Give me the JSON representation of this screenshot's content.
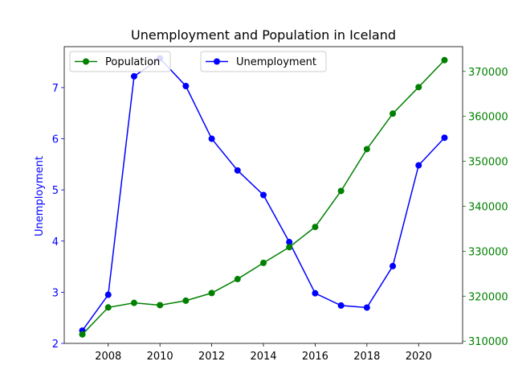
{
  "chart_data": {
    "type": "line",
    "title": "Unemployment and Population in Iceland",
    "x": [
      2007,
      2008,
      2009,
      2010,
      2011,
      2012,
      2013,
      2014,
      2015,
      2016,
      2017,
      2018,
      2019,
      2020,
      2021
    ],
    "x_ticks": [
      2008,
      2010,
      2012,
      2014,
      2016,
      2018,
      2020
    ],
    "xlim": [
      2006.3,
      2021.7
    ],
    "left_axis": {
      "label": "Unemployment",
      "ylim": [
        2.0,
        7.8
      ],
      "ticks": [
        2,
        3,
        4,
        5,
        6,
        7
      ],
      "color": "#0000ff"
    },
    "right_axis": {
      "ylim": [
        309500,
        375500
      ],
      "ticks": [
        310000,
        320000,
        330000,
        340000,
        350000,
        360000,
        370000
      ],
      "color": "#008000"
    },
    "series": [
      {
        "name": "Unemployment",
        "axis": "left",
        "color": "#0000ff",
        "values": [
          2.25,
          2.95,
          7.22,
          7.57,
          7.03,
          6.0,
          5.38,
          4.9,
          3.98,
          2.98,
          2.74,
          2.7,
          3.51,
          5.48,
          6.02
        ]
      },
      {
        "name": "Population",
        "axis": "right",
        "color": "#008000",
        "values": [
          311500,
          317500,
          318500,
          318000,
          319000,
          320700,
          323800,
          327400,
          330900,
          335400,
          343400,
          352700,
          360600,
          366500,
          372500
        ]
      }
    ],
    "legends": [
      {
        "series": "Population",
        "placement": "top-left"
      },
      {
        "series": "Unemployment",
        "placement": "top-center"
      }
    ],
    "grid": false
  }
}
